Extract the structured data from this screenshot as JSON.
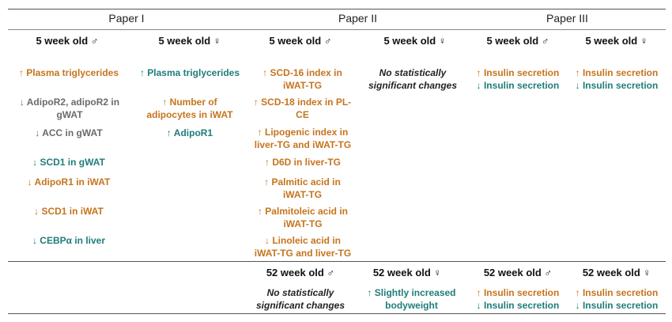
{
  "colors": {
    "increase": "#c5741d",
    "decrease_teal": "#1f7d7a",
    "gray": "#6b6b6b",
    "rule": "#555555"
  },
  "papers": {
    "p1": "Paper I",
    "p2": "Paper II",
    "p3": "Paper III"
  },
  "headers": {
    "h1": "5 week old ♂",
    "h2": "5 week old ♀",
    "h3": "5 week old ♂",
    "h4": "5 week old ♀",
    "h5": "5 week old ♂",
    "h6": "5 week old ♀"
  },
  "col1": [
    "↑ Plasma triglycerides",
    "↓ AdipoR2, adipoR2 in gWAT",
    "↓ ACC in gWAT",
    "↓ SCD1 in gWAT",
    "↓ AdipoR1 in iWAT",
    "↓ SCD1 in iWAT",
    "↓ CEBPα in liver"
  ],
  "col2": [
    "↑ Plasma triglycerides",
    "↑ Number of adipocytes in iWAT",
    "↑ AdipoR1"
  ],
  "col3": [
    "↑ SCD-16 index in iWAT-TG",
    "↑ SCD-18 index in PL-CE",
    "↑ Lipogenic index in liver-TG and iWAT-TG",
    "↑ D6D in liver-TG",
    "↑ Palmitic acid in iWAT-TG",
    "↑ Palmitoleic acid in iWAT-TG",
    "↓ Linoleic acid in iWAT-TG and liver-TG"
  ],
  "col4": [
    "No statistically significant changes"
  ],
  "col5": [
    "↑ Insulin secretion",
    "↓ Insulin secretion"
  ],
  "col6": [
    "↑ Insulin secretion",
    "↓ Insulin secretion"
  ],
  "headers52": {
    "h3": "52 week old ♂",
    "h4": "52 week old ♀",
    "h5": "52 week old ♂",
    "h6": "52 week old ♀"
  },
  "row52": {
    "col3": "No statistically significant changes",
    "col4": "↑ Slightly increased bodyweight",
    "col5a": "↑ Insulin secretion",
    "col5b": "↓ Insulin secretion",
    "col6a": "↑ Insulin secretion",
    "col6b": "↓ Insulin secretion"
  }
}
